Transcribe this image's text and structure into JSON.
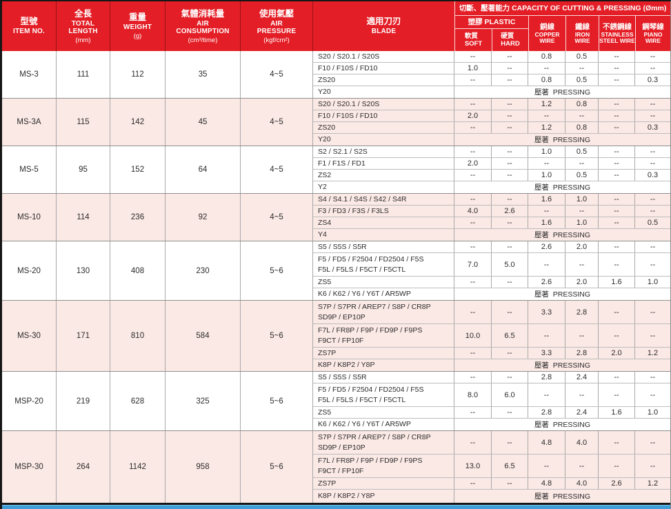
{
  "pressing_label": "壓著  PRESSING",
  "colors": {
    "header_red": "#e41e26",
    "row_pink": "#fbe9e5",
    "strip_blue": "#3f9ed8",
    "border_black": "#161616"
  },
  "header": {
    "spec_columns": [
      {
        "zh": "型號",
        "en": "ITEM NO.",
        "unit": ""
      },
      {
        "zh": "全長",
        "en": "TOTAL\nLENGTH",
        "unit": "(mm)"
      },
      {
        "zh": "重量",
        "en": "WEIGHT",
        "unit": "(g)"
      },
      {
        "zh": "氣體消耗量",
        "en": "AIR\nCONSUMPTION",
        "unit": "(cm³/time)"
      },
      {
        "zh": "使用氣壓",
        "en": "AIR\nPRESSURE",
        "unit": "(kgf/cm²)"
      },
      {
        "zh": "適用刀刃",
        "en": "BLADE",
        "unit": ""
      }
    ],
    "capacity": {
      "title": "切斷、壓著能力 CAPACITY OF CUTTING & PRESSING (Ømm)",
      "plastic": {
        "label": "塑膠 PLASTIC",
        "soft": "軟質\nSOFT",
        "hard": "硬質\nHARD"
      },
      "wires": [
        {
          "zh": "銅線",
          "en": "COPPER\nWIRE"
        },
        {
          "zh": "鐵線",
          "en": "IRON\nWIRE"
        },
        {
          "zh": "不銹鋼線",
          "en": "STAINLESS\nSTEEL WIRE"
        },
        {
          "zh": "鋼琴線",
          "en": "PIANO\nWIRE"
        }
      ]
    }
  },
  "models": [
    {
      "item": "MS-3",
      "length": "111",
      "weight": "112",
      "air": "35",
      "pressure": "4~5",
      "shade": "white",
      "rows": [
        {
          "blade": "S20 / S20.1 / S20S",
          "values": [
            "--",
            "--",
            "0.8",
            "0.5",
            "--",
            "--"
          ]
        },
        {
          "blade": "F10 / F10S / FD10",
          "values": [
            "1.0",
            "--",
            "--",
            "--",
            "--",
            "--"
          ]
        },
        {
          "blade": "ZS20",
          "values": [
            "--",
            "--",
            "0.8",
            "0.5",
            "--",
            "0.3"
          ]
        },
        {
          "blade": "Y20",
          "pressing": true
        }
      ]
    },
    {
      "item": "MS-3A",
      "length": "115",
      "weight": "142",
      "air": "45",
      "pressure": "4~5",
      "shade": "pink",
      "rows": [
        {
          "blade": "S20 / S20.1 / S20S",
          "values": [
            "--",
            "--",
            "1.2",
            "0.8",
            "--",
            "--"
          ]
        },
        {
          "blade": "F10 / F10S / FD10",
          "values": [
            "2.0",
            "--",
            "--",
            "--",
            "--",
            "--"
          ]
        },
        {
          "blade": "ZS20",
          "values": [
            "--",
            "--",
            "1.2",
            "0.8",
            "--",
            "0.3"
          ]
        },
        {
          "blade": "Y20",
          "pressing": true
        }
      ]
    },
    {
      "item": "MS-5",
      "length": "95",
      "weight": "152",
      "air": "64",
      "pressure": "4~5",
      "shade": "white",
      "rows": [
        {
          "blade": "S2 / S2.1 / S2S",
          "values": [
            "--",
            "--",
            "1.0",
            "0.5",
            "--",
            "--"
          ]
        },
        {
          "blade": "F1 / F1S / FD1",
          "values": [
            "2.0",
            "--",
            "--",
            "--",
            "--",
            "--"
          ]
        },
        {
          "blade": "ZS2",
          "values": [
            "--",
            "--",
            "1.0",
            "0.5",
            "--",
            "0.3"
          ]
        },
        {
          "blade": "Y2",
          "pressing": true
        }
      ]
    },
    {
      "item": "MS-10",
      "length": "114",
      "weight": "236",
      "air": "92",
      "pressure": "4~5",
      "shade": "pink",
      "rows": [
        {
          "blade": "S4 / S4.1 / S4S / S42 / S4R",
          "values": [
            "--",
            "--",
            "1.6",
            "1.0",
            "--",
            "--"
          ]
        },
        {
          "blade": "F3 / FD3 / F3S / F3LS",
          "values": [
            "4.0",
            "2.6",
            "--",
            "--",
            "--",
            "--"
          ]
        },
        {
          "blade": "ZS4",
          "values": [
            "--",
            "--",
            "1.6",
            "1.0",
            "--",
            "0.5"
          ]
        },
        {
          "blade": "Y4",
          "pressing": true
        }
      ]
    },
    {
      "item": "MS-20",
      "length": "130",
      "weight": "408",
      "air": "230",
      "pressure": "5~6",
      "shade": "white",
      "rows": [
        {
          "blade": "S5 / S5S / S5R",
          "values": [
            "--",
            "--",
            "2.6",
            "2.0",
            "--",
            "--"
          ]
        },
        {
          "blade": "F5 / FD5 / F2504 / FD2504 / F5S\nF5L / F5LS / F5CT / F5CTL",
          "values": [
            "7.0",
            "5.0",
            "--",
            "--",
            "--",
            "--"
          ]
        },
        {
          "blade": "ZS5",
          "values": [
            "--",
            "--",
            "2.6",
            "2.0",
            "1.6",
            "1.0"
          ]
        },
        {
          "blade": "K6 / K62 / Y6 / Y6T / AR5WP",
          "pressing": true
        }
      ]
    },
    {
      "item": "MS-30",
      "length": "171",
      "weight": "810",
      "air": "584",
      "pressure": "5~6",
      "shade": "pink",
      "rows": [
        {
          "blade": "S7P / S7PR / AREP7 / S8P / CR8P\nSD9P / EP10P",
          "values": [
            "--",
            "--",
            "3.3",
            "2.8",
            "--",
            "--"
          ]
        },
        {
          "blade": "F7L / FR8P / F9P / FD9P / F9PS\nF9CT / FP10F",
          "values": [
            "10.0",
            "6.5",
            "--",
            "--",
            "--",
            "--"
          ]
        },
        {
          "blade": "ZS7P",
          "values": [
            "--",
            "--",
            "3.3",
            "2.8",
            "2.0",
            "1.2"
          ]
        },
        {
          "blade": "K8P / K8P2 / Y8P",
          "pressing": true
        }
      ]
    },
    {
      "item": "MSP-20",
      "length": "219",
      "weight": "628",
      "air": "325",
      "pressure": "5~6",
      "shade": "white",
      "rows": [
        {
          "blade": "S5 / S5S / S5R",
          "values": [
            "--",
            "--",
            "2.8",
            "2.4",
            "--",
            "--"
          ]
        },
        {
          "blade": "F5 / FD5 / F2504 / FD2504 / F5S\nF5L / F5LS / F5CT / F5CTL",
          "values": [
            "8.0",
            "6.0",
            "--",
            "--",
            "--",
            "--"
          ]
        },
        {
          "blade": "ZS5",
          "values": [
            "--",
            "--",
            "2.8",
            "2.4",
            "1.6",
            "1.0"
          ]
        },
        {
          "blade": "K6 / K62 / Y6 / Y6T / AR5WP",
          "pressing": true
        }
      ]
    },
    {
      "item": "MSP-30",
      "length": "264",
      "weight": "1142",
      "air": "958",
      "pressure": "5~6",
      "shade": "pink",
      "rows": [
        {
          "blade": "S7P / S7PR / AREP7 / S8P / CR8P\nSD9P / EP10P",
          "values": [
            "--",
            "--",
            "4.8",
            "4.0",
            "--",
            "--"
          ]
        },
        {
          "blade": "F7L / FR8P / F9P / FD9P / F9PS\nF9CT / FP10F",
          "values": [
            "13.0",
            "6.5",
            "--",
            "--",
            "--",
            "--"
          ]
        },
        {
          "blade": "ZS7P",
          "values": [
            "--",
            "--",
            "4.8",
            "4.0",
            "2.6",
            "1.2"
          ]
        },
        {
          "blade": "K8P / K8P2 / Y8P",
          "pressing": true
        }
      ]
    }
  ]
}
